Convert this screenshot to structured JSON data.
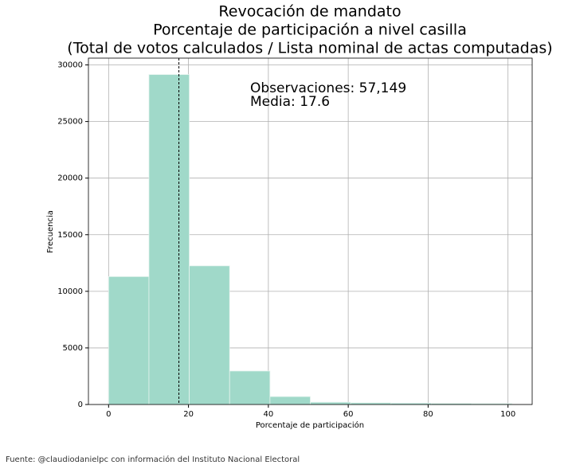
{
  "chart_data": {
    "type": "histogram",
    "title": [
      "Revocación de mandato",
      "Porcentaje de participación a nivel casilla",
      "(Total de votos calculados / Lista nominal de actas computadas)"
    ],
    "xlabel": "Porcentaje de participación",
    "ylabel": "Frecuencia",
    "bins": [
      0,
      10.1,
      20.2,
      30.3,
      40.4,
      50.5,
      60.6,
      70.7,
      80.8,
      90.9,
      101
    ],
    "values": [
      11300,
      29150,
      12250,
      2960,
      700,
      200,
      150,
      120,
      100,
      80
    ],
    "color": "#a0d9c9",
    "mean_line": 17.6,
    "annotations": [
      "Observaciones: 57,149",
      "Media: 17.6"
    ],
    "xlim": [
      -5.05,
      106.05
    ],
    "xticks": [
      0,
      20,
      40,
      60,
      80,
      100
    ],
    "ylim": [
      0,
      30600
    ],
    "yticks": [
      0,
      5000,
      10000,
      15000,
      20000,
      25000,
      30000
    ],
    "grid": true,
    "source": "Fuente: @claudiodanielpc con información del Instituto Nacional Electoral"
  }
}
